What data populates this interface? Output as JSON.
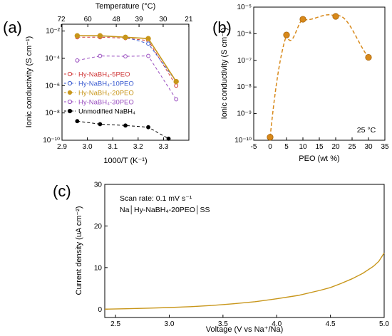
{
  "labels": {
    "a": "(a)",
    "b": "(b)",
    "c": "(c)"
  },
  "chart_data": [
    {
      "panel": "a",
      "type": "line",
      "xlabel": "1000/T (K⁻¹)",
      "ylabel": "Ionic conductivity (S cm⁻¹)",
      "top_axis_label": "Temperature (°C)",
      "xlim": [
        2.9,
        3.4
      ],
      "ylim_log10": [
        -10,
        -1.5
      ],
      "x_ticks": [
        "2.9",
        "3.0",
        "3.1",
        "3.2",
        "3.3"
      ],
      "y_ticks": [
        "10⁻¹⁰",
        "10⁻⁸",
        "10⁻⁶",
        "10⁻⁴",
        "10⁻²"
      ],
      "top_ticks": [
        "72",
        "60",
        "48",
        "39",
        "30",
        "21"
      ],
      "legend_position": "middle-left",
      "series": [
        {
          "name": "Hy-NaBH₄-5PEO",
          "color": "#d0393a",
          "marker": "open-circle",
          "x": [
            2.96,
            3.05,
            3.15,
            3.24,
            3.35
          ],
          "y": [
            0.0035,
            0.0035,
            0.003,
            0.002,
            1e-06
          ]
        },
        {
          "name": "Hy-NaBH₄-10PEO",
          "color": "#3a5bd0",
          "marker": "open-circle",
          "x": [
            2.96,
            3.05,
            3.15,
            3.24,
            3.35
          ],
          "y": [
            0.0045,
            0.0042,
            0.0035,
            0.0012,
            2e-06
          ]
        },
        {
          "name": "Hy-NaBH₄-20PEO",
          "color": "#c8961a",
          "marker": "filled-circle",
          "x": [
            2.96,
            3.05,
            3.15,
            3.24,
            3.35
          ],
          "y": [
            0.0045,
            0.0045,
            0.0035,
            0.0028,
            2e-06
          ]
        },
        {
          "name": "Hy-NaBH₄-30PEO",
          "color": "#9a4fc0",
          "marker": "open-circle",
          "x": [
            2.96,
            3.05,
            3.15,
            3.24,
            3.35
          ],
          "y": [
            7e-05,
            0.00015,
            0.00014,
            0.00015,
            1e-07
          ]
        },
        {
          "name": "Unmodified NaBH₄",
          "color": "#000000",
          "marker": "filled-circle",
          "x": [
            2.96,
            3.05,
            3.15,
            3.24,
            3.32
          ],
          "y": [
            2.5e-09,
            1.5e-09,
            1.2e-09,
            9e-10,
            1.3e-10
          ]
        }
      ]
    },
    {
      "panel": "b",
      "type": "scatter",
      "xlabel": "PEO (wt %)",
      "ylabel": "Ionic conductivity (S cm⁻¹)",
      "annotation": "25 °C",
      "xlim": [
        -5,
        35
      ],
      "ylim_log10": [
        -10,
        -5
      ],
      "x_ticks": [
        "-5",
        "0",
        "5",
        "10",
        "15",
        "20",
        "25",
        "30",
        "35"
      ],
      "y_ticks": [
        "10⁻¹⁰",
        "10⁻⁹",
        "10⁻⁸",
        "10⁻⁷",
        "10⁻⁶",
        "10⁻⁵"
      ],
      "color": "#d8891a",
      "points": {
        "x": [
          0,
          5,
          10,
          20,
          30
        ],
        "y": [
          1.3e-10,
          9e-07,
          3.5e-06,
          4.5e-06,
          1.3e-07
        ]
      }
    },
    {
      "panel": "c",
      "type": "line",
      "xlabel": "Voltage (V vs Na⁺/Na)",
      "ylabel": "Current density (uA cm⁻²)",
      "xlim": [
        2.4,
        5.0
      ],
      "ylim": [
        -2,
        30
      ],
      "x_ticks": [
        "2.5",
        "3.0",
        "3.5",
        "4.0",
        "4.5",
        "5.0"
      ],
      "y_ticks": [
        "0",
        "10",
        "20",
        "30"
      ],
      "annotation_lines": [
        "Scan rate: 0.1 mV s⁻¹",
        "Na│Hy-NaBH₄-20PEO│SS"
      ],
      "color": "#c8961a",
      "series": [
        {
          "x": [
            2.4,
            2.6,
            2.8,
            3.0,
            3.2,
            3.4,
            3.6,
            3.8,
            4.0,
            4.2,
            4.4,
            4.5,
            4.6,
            4.7,
            4.8,
            4.9,
            4.95,
            5.0
          ],
          "y": [
            0.0,
            0.1,
            0.25,
            0.4,
            0.6,
            0.9,
            1.3,
            1.8,
            2.5,
            3.3,
            4.5,
            5.2,
            6.2,
            7.3,
            8.6,
            10.3,
            11.5,
            13.5
          ]
        }
      ]
    }
  ]
}
